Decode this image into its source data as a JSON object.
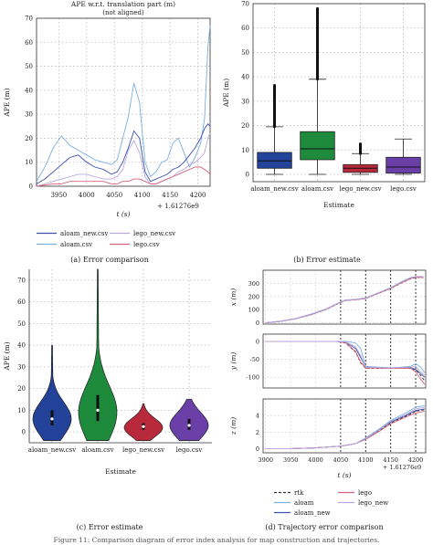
{
  "colors": {
    "aloam_new": "#3b52b0",
    "aloam": "#7ab0e0",
    "lego_new": "#b9a7de",
    "lego": "#d9627a",
    "rtk": "#333333",
    "box_blue": "#23429a",
    "box_green": "#1e8a3c",
    "box_red": "#b82a3b",
    "box_purple": "#6a3fa8"
  },
  "panels": {
    "a": {
      "caption": "(a) Error comparison"
    },
    "b": {
      "caption": "(b) Error estimate"
    },
    "c": {
      "caption": "(c) Error estimate"
    },
    "d": {
      "caption": "(d) Trajectory error comparison"
    }
  },
  "figure_caption": "Figure 11: Comparison diagram of error index analysis for map construction and trajectories.",
  "chart_data": [
    {
      "id": "a",
      "type": "line",
      "title": "APE w.r.t. translation part (m)",
      "subtitle": "(not aligned)",
      "xlabel": "t (s)",
      "ylabel": "APE (m)",
      "offset_label": "+ 1.61276e9",
      "xlim": [
        3910,
        4222
      ],
      "ylim": [
        0,
        70
      ],
      "xticks": [
        3950,
        4000,
        4050,
        4100,
        4150,
        4200
      ],
      "yticks": [
        0,
        10,
        20,
        30,
        40,
        50,
        60,
        70
      ],
      "grid": true,
      "legend_position": "bottom",
      "legend": [
        "aloam_new.csv",
        "lego_new.csv",
        "aloam.csv",
        "lego.csv"
      ],
      "x": [
        3910,
        3925,
        3940,
        3955,
        3970,
        3985,
        4000,
        4015,
        4030,
        4045,
        4055,
        4065,
        4075,
        4085,
        4095,
        4105,
        4115,
        4125,
        4135,
        4145,
        4155,
        4165,
        4175,
        4185,
        4195,
        4205,
        4212,
        4218,
        4222
      ],
      "series": [
        {
          "name": "aloam.csv",
          "color_key": "aloam",
          "values": [
            2,
            8,
            16,
            21,
            17,
            15,
            13,
            11,
            10,
            9,
            11,
            20,
            29,
            43,
            35,
            10,
            4,
            6,
            10,
            11,
            18,
            20,
            14,
            8,
            12,
            18,
            28,
            58,
            67
          ]
        },
        {
          "name": "aloam_new.csv",
          "color_key": "aloam_new",
          "values": [
            1,
            3,
            6,
            9,
            12,
            13,
            10,
            8,
            7,
            5,
            6,
            10,
            16,
            23,
            20,
            6,
            2,
            3,
            4,
            5,
            7,
            8,
            10,
            13,
            16,
            20,
            24,
            26,
            25
          ]
        },
        {
          "name": "lego_new.csv",
          "color_key": "lego_new",
          "values": [
            0,
            1,
            2,
            3,
            4,
            5,
            5,
            4,
            3,
            3,
            4,
            7,
            15,
            19,
            14,
            4,
            1,
            1,
            2,
            3,
            4,
            6,
            7,
            9,
            10,
            12,
            14,
            20,
            22
          ]
        },
        {
          "name": "lego.csv",
          "color_key": "lego",
          "values": [
            0,
            0.5,
            1,
            1,
            2,
            2,
            2,
            2,
            2,
            1,
            1,
            2,
            2,
            3,
            3,
            2,
            1,
            1,
            2,
            3,
            4,
            5,
            6,
            7,
            8,
            8,
            7,
            6,
            5
          ]
        }
      ]
    },
    {
      "id": "b",
      "type": "box",
      "xlabel": "Estimate",
      "ylabel": "APE (m)",
      "ylim": [
        -3,
        70
      ],
      "yticks": [
        0,
        10,
        20,
        30,
        40,
        50,
        60,
        70
      ],
      "categories": [
        "aloam_new.csv",
        "aloam.csv",
        "lego_new.csv",
        "lego.csv"
      ],
      "box_colors": [
        "box_blue",
        "box_green",
        "box_red",
        "box_purple"
      ],
      "boxes": [
        {
          "whislo": 0,
          "q1": 2.5,
          "med": 5.5,
          "q3": 9,
          "whishi": 19.5,
          "fliers_to": 36.5
        },
        {
          "whislo": 0,
          "q1": 6,
          "med": 10.5,
          "q3": 17.5,
          "whishi": 39,
          "fliers_to": 68
        },
        {
          "whislo": 0,
          "q1": 0.8,
          "med": 2.5,
          "q3": 4,
          "whishi": 8.5,
          "fliers_to": 12.5
        },
        {
          "whislo": 0,
          "q1": 0.5,
          "med": 3,
          "q3": 7,
          "whishi": 14.5,
          "fliers_to": null
        }
      ]
    },
    {
      "id": "c",
      "type": "violin",
      "xlabel": "Estimate",
      "ylabel": "APE (m)",
      "ylim": [
        -5,
        75
      ],
      "yticks": [
        0,
        10,
        20,
        30,
        40,
        50,
        60,
        70
      ],
      "categories": [
        "aloam_new.csv",
        "aloam.csv",
        "lego_new.csv",
        "lego.csv"
      ],
      "violin_colors": [
        "box_blue",
        "box_green",
        "box_red",
        "box_purple"
      ],
      "violins": [
        {
          "min": -4,
          "max": 40,
          "q1": 3,
          "med": 6,
          "q3": 10,
          "peak": 6
        },
        {
          "min": -4,
          "max": 75,
          "q1": 5,
          "med": 10,
          "q3": 17,
          "peak": 9
        },
        {
          "min": -4,
          "max": 13,
          "q1": 1,
          "med": 2.5,
          "q3": 4,
          "peak": 2
        },
        {
          "min": -4,
          "max": 15,
          "q1": 1,
          "med": 3,
          "q3": 6,
          "peak": 3
        }
      ]
    },
    {
      "id": "d",
      "type": "line",
      "xlabel": "t (s)",
      "offset_label": "+ 1.61276e9",
      "xlim": [
        3895,
        4220
      ],
      "xticks": [
        3900,
        3950,
        4000,
        4050,
        4100,
        4150,
        4200
      ],
      "grid": true,
      "legend_position": "bottom",
      "legend": [
        {
          "name": "rtk",
          "color_key": "rtk",
          "dash": true
        },
        {
          "name": "lego",
          "color_key": "lego"
        },
        {
          "name": "aloam",
          "color_key": "aloam"
        },
        {
          "name": "lego_new",
          "color_key": "lego_new"
        },
        {
          "name": "aloam_new",
          "color_key": "aloam_new"
        }
      ],
      "vlines": [
        4050,
        4100,
        4150,
        4200
      ],
      "subplots": [
        {
          "ylabel": "x (m)",
          "ylim": [
            -10,
            400
          ],
          "yticks": [
            0,
            100,
            200,
            300
          ],
          "t": [
            3900,
            3930,
            3960,
            3990,
            4020,
            4050,
            4060,
            4080,
            4100,
            4120,
            4150,
            4170,
            4190,
            4200,
            4210,
            4215
          ],
          "series": [
            {
              "key": "rtk",
              "values": [
                0,
                10,
                30,
                60,
                100,
                155,
                170,
                175,
                185,
                215,
                260,
                300,
                335,
                345,
                345,
                342
              ]
            },
            {
              "key": "aloam",
              "values": [
                0,
                12,
                33,
                65,
                105,
                160,
                175,
                178,
                190,
                220,
                268,
                310,
                345,
                352,
                352,
                350
              ]
            },
            {
              "key": "aloam_new",
              "values": [
                0,
                11,
                31,
                62,
                102,
                157,
                172,
                176,
                187,
                218,
                264,
                305,
                340,
                350,
                350,
                348
              ]
            },
            {
              "key": "lego",
              "values": [
                0,
                10,
                30,
                61,
                101,
                156,
                171,
                175,
                186,
                216,
                262,
                302,
                337,
                347,
                346,
                344
              ]
            },
            {
              "key": "lego_new",
              "values": [
                0,
                11,
                32,
                63,
                103,
                158,
                173,
                177,
                189,
                219,
                266,
                307,
                342,
                351,
                351,
                349
              ]
            }
          ]
        },
        {
          "ylabel": "y (m)",
          "ylim": [
            -130,
            20
          ],
          "yticks": [
            -100,
            -50,
            0
          ],
          "t": [
            3900,
            3950,
            4000,
            4040,
            4060,
            4080,
            4090,
            4100,
            4150,
            4190,
            4200,
            4210,
            4218
          ],
          "series": [
            {
              "key": "rtk",
              "values": [
                0,
                0,
                0,
                0,
                -5,
                -30,
                -60,
                -75,
                -75,
                -75,
                -80,
                -95,
                -110
              ]
            },
            {
              "key": "aloam",
              "values": [
                0,
                0,
                0,
                0,
                0,
                -5,
                -20,
                -70,
                -74,
                -70,
                -62,
                -72,
                -88
              ]
            },
            {
              "key": "aloam_new",
              "values": [
                0,
                0,
                0,
                0,
                -3,
                -20,
                -45,
                -72,
                -74,
                -74,
                -78,
                -90,
                -100
              ]
            },
            {
              "key": "lego",
              "values": [
                0,
                0,
                0,
                0,
                -4,
                -28,
                -58,
                -74,
                -75,
                -75,
                -85,
                -105,
                -120
              ]
            },
            {
              "key": "lego_new",
              "values": [
                0,
                0,
                0,
                0,
                -2,
                -15,
                -40,
                -72,
                -74,
                -72,
                -70,
                -85,
                -95
              ]
            }
          ]
        },
        {
          "ylabel": "z (m)",
          "ylim": [
            -0.5,
            6
          ],
          "yticks": [
            0,
            2,
            4
          ],
          "t": [
            3900,
            3950,
            4000,
            4050,
            4080,
            4100,
            4130,
            4150,
            4180,
            4200,
            4218
          ],
          "series": [
            {
              "key": "rtk",
              "values": [
                0,
                0,
                0.1,
                0.3,
                0.6,
                1.2,
                2.3,
                3.1,
                3.9,
                4.5,
                4.7
              ]
            },
            {
              "key": "aloam",
              "values": [
                0,
                0,
                0.1,
                0.3,
                0.6,
                1.3,
                2.5,
                3.4,
                4.3,
                5.0,
                5.2
              ]
            },
            {
              "key": "aloam_new",
              "values": [
                0,
                0,
                0.1,
                0.3,
                0.6,
                1.2,
                2.4,
                3.2,
                4.0,
                4.6,
                4.8
              ]
            },
            {
              "key": "lego",
              "values": [
                0,
                0,
                0.1,
                0.3,
                0.6,
                1.1,
                2.2,
                3.0,
                3.8,
                4.3,
                4.5
              ]
            },
            {
              "key": "lego_new",
              "values": [
                0,
                0,
                0.1,
                0.3,
                0.6,
                1.2,
                2.4,
                3.3,
                4.1,
                4.8,
                5.0
              ]
            }
          ]
        }
      ]
    }
  ]
}
